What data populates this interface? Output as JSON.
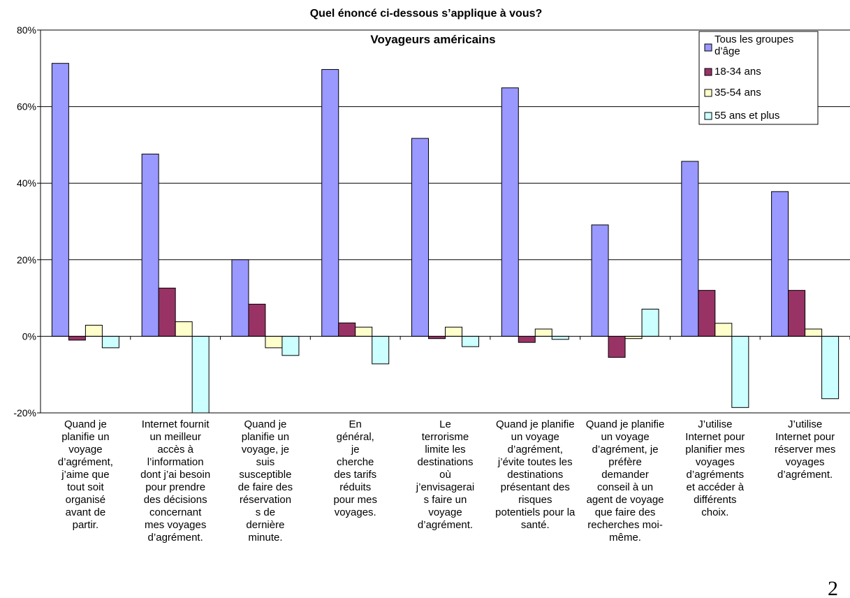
{
  "chart_data": {
    "type": "bar",
    "title": "Quel énoncé ci-dessous s’applique à vous?",
    "subtitle": "Voyageurs américains",
    "ylim": [
      -20,
      80
    ],
    "yticks": [
      "-20%",
      "0%",
      "20%",
      "40%",
      "60%",
      "80%"
    ],
    "grid": true,
    "legend_position": "top-right",
    "categories": [
      [
        "Quand je",
        "planifie un",
        "voyage",
        "d’agrément,",
        "j’aime que",
        "tout soit",
        "organisé",
        "avant de",
        "partir."
      ],
      [
        "Internet fournit",
        "un meilleur",
        "accès à",
        "l’information",
        "dont j’ai besoin",
        "pour prendre",
        "des décisions",
        "concernant",
        "mes voyages",
        "d’agrément."
      ],
      [
        "Quand je",
        "planifie un",
        "voyage, je",
        "suis",
        "susceptible",
        "de faire des",
        "réservation",
        "s de",
        "dernière",
        "minute."
      ],
      [
        "En",
        "général,",
        "je",
        "cherche",
        "des tarifs",
        "réduits",
        "pour mes",
        "voyages."
      ],
      [
        "Le",
        "terrorisme",
        "limite les",
        "destinations",
        "où",
        "j’envisagerai",
        "s faire un",
        "voyage",
        "d’agrément."
      ],
      [
        "Quand je planifie",
        "un voyage",
        "d’agrément,",
        "j’évite toutes les",
        "destinations",
        "présentant des",
        "risques",
        "potentiels pour la",
        "santé."
      ],
      [
        "Quand je planifie",
        "un voyage",
        "d’agrément, je",
        "préfère",
        "demander",
        "conseil à un",
        "agent de voyage",
        "que faire des",
        "recherches moi-",
        "même."
      ],
      [
        "J’utilise",
        "Internet pour",
        "planifier mes",
        "voyages",
        "d’agréments",
        "et accéder à",
        "différents",
        "choix."
      ],
      [
        "J’utilise",
        "Internet pour",
        "réserver mes",
        "voyages",
        "d’agrément."
      ]
    ],
    "series": [
      {
        "name": "Tous les groupes d’âge",
        "color": "#9999FF",
        "values": [
          71.3,
          47.6,
          20.0,
          69.7,
          51.7,
          64.9,
          29.1,
          45.7,
          37.8
        ]
      },
      {
        "name": "18-34 ans",
        "color": "#993366",
        "values": [
          -1.0,
          12.6,
          8.4,
          3.5,
          -0.6,
          -1.6,
          -5.5,
          12.0,
          12.0
        ]
      },
      {
        "name": "35-54 ans",
        "color": "#FFFFCC",
        "values": [
          2.9,
          3.8,
          -3.0,
          2.4,
          2.4,
          1.9,
          -0.6,
          3.4,
          1.9
        ]
      },
      {
        "name": "55 ans et plus",
        "color": "#CCFFFF",
        "values": [
          -3.0,
          -20.0,
          -5.0,
          -7.2,
          -2.7,
          -0.8,
          7.1,
          -18.6,
          -16.3
        ]
      }
    ]
  },
  "page_number": "2"
}
